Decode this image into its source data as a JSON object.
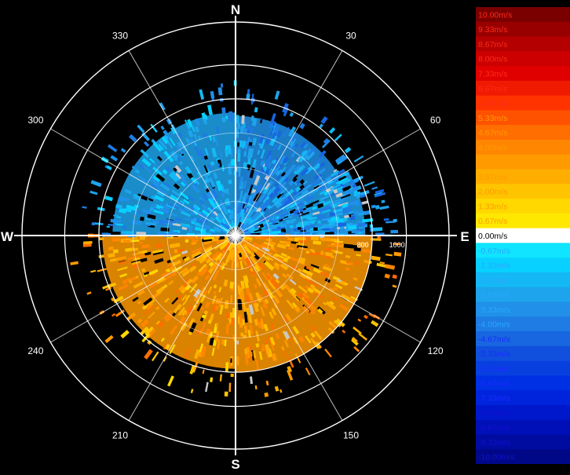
{
  "chart_data": {
    "type": "polar-radar-velocity",
    "cardinals": [
      "N",
      "E",
      "S",
      "W"
    ],
    "angle_ticks": [
      {
        "deg": 30,
        "label": "30"
      },
      {
        "deg": 60,
        "label": "60"
      },
      {
        "deg": 120,
        "label": "120"
      },
      {
        "deg": 150,
        "label": "150"
      },
      {
        "deg": 210,
        "label": "210"
      },
      {
        "deg": 240,
        "label": "240"
      },
      {
        "deg": 300,
        "label": "300"
      },
      {
        "deg": 330,
        "label": "330"
      }
    ],
    "range_rings": [
      200,
      400,
      600,
      800,
      1000
    ],
    "range_labels": [
      {
        "value": 800,
        "label": "800"
      },
      {
        "value": 1000,
        "label": "1000"
      }
    ],
    "range_max": 1250,
    "colorbar": {
      "unit": "m/s",
      "levels": [
        {
          "label": "10.00m/s",
          "color": "#7a0000"
        },
        {
          "label": "9.33m/s",
          "color": "#980000"
        },
        {
          "label": "8.67m/s",
          "color": "#b40000"
        },
        {
          "label": "8.00m/s",
          "color": "#cc0000"
        },
        {
          "label": "7.33m/s",
          "color": "#e00000"
        },
        {
          "label": "6.67m/s",
          "color": "#f01a00"
        },
        {
          "label": "6.00m/s",
          "color": "#ff3300"
        },
        {
          "label": "5.33m/s",
          "color": "#ff5200"
        },
        {
          "label": "4.67m/s",
          "color": "#ff6e00"
        },
        {
          "label": "4.00m/s",
          "color": "#ff8600"
        },
        {
          "label": "3.33m/s",
          "color": "#ff9a00"
        },
        {
          "label": "2.67m/s",
          "color": "#ffae00"
        },
        {
          "label": "2.00m/s",
          "color": "#ffc400"
        },
        {
          "label": "1.33m/s",
          "color": "#ffd800"
        },
        {
          "label": "0.67m/s",
          "color": "#ffe800"
        },
        {
          "label": "0.00m/s",
          "color": "#ffffff"
        },
        {
          "label": "-0.67m/s",
          "color": "#10e4ff"
        },
        {
          "label": "-1.33m/s",
          "color": "#08d0ff"
        },
        {
          "label": "-2.00m/s",
          "color": "#14b8f4"
        },
        {
          "label": "-2.67m/s",
          "color": "#1ea4ec"
        },
        {
          "label": "-3.33m/s",
          "color": "#2090e8"
        },
        {
          "label": "-4.00m/s",
          "color": "#1e7ce4"
        },
        {
          "label": "-4.67m/s",
          "color": "#1866e0"
        },
        {
          "label": "-5.33m/s",
          "color": "#1050dc"
        },
        {
          "label": "-6.00m/s",
          "color": "#0840e0"
        },
        {
          "label": "-6.67m/s",
          "color": "#0030e4"
        },
        {
          "label": "-7.33m/s",
          "color": "#0024dc"
        },
        {
          "label": "-8.00m/s",
          "color": "#0018cc"
        },
        {
          "label": "-8.67m/s",
          "color": "#0010b8"
        },
        {
          "label": "-9.33m/s",
          "color": "#000ca0"
        },
        {
          "label": "-10.00m/s",
          "color": "#000888"
        }
      ]
    },
    "sectors": [
      {
        "az_from": 0,
        "az_to": 60,
        "r_max": 700,
        "velocity": -3.33
      },
      {
        "az_from": 60,
        "az_to": 90,
        "r_max": 760,
        "velocity": -3.0
      },
      {
        "az_from": 90,
        "az_to": 180,
        "r_max": 800,
        "velocity": 3.33
      },
      {
        "az_from": 180,
        "az_to": 270,
        "r_max": 780,
        "velocity": 3.0
      },
      {
        "az_from": 270,
        "az_to": 360,
        "r_max": 720,
        "velocity": -2.67
      }
    ]
  }
}
